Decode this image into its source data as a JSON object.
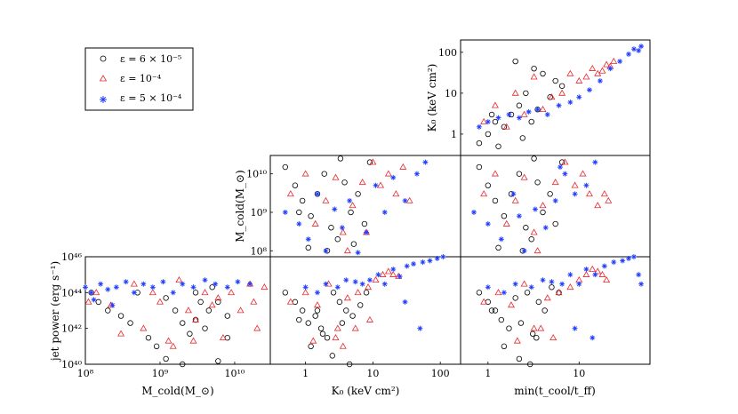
{
  "legend": {
    "entries": [
      {
        "label": "ε = 6 × 10⁻⁵",
        "marker": "circle",
        "color": "#000000"
      },
      {
        "label": "ε = 10⁻⁴",
        "marker": "triangle",
        "color": "#e8262b"
      },
      {
        "label": "ε = 5 × 10⁻⁴",
        "marker": "star",
        "color": "#1e3cff"
      }
    ]
  },
  "chart_data": [
    {
      "type": "scatter",
      "panel": "row3-col1",
      "xlabel": "M_cold(M_⊙)",
      "ylabel": "jet power (erg s⁻¹)",
      "xscale": "log",
      "yscale": "log",
      "xlim": [
        100000000.0,
        30000000000.0
      ],
      "ylim": [
        1e+40,
        1e+46
      ],
      "xticks": [
        {
          "v": 100000000.0,
          "label": "10⁸"
        },
        {
          "v": 1000000000.0,
          "label": "10⁹"
        },
        {
          "v": 10000000000.0,
          "label": "10¹⁰"
        }
      ],
      "yticks": [
        {
          "v": 1e+40,
          "label": "10⁴⁰"
        },
        {
          "v": 1e+42,
          "label": "10⁴²"
        },
        {
          "v": 1e+44,
          "label": "10⁴⁴"
        },
        {
          "v": 1e+46,
          "label": "10⁴⁶"
        }
      ],
      "series": [
        {
          "name": "ε = 6 × 10⁻⁵",
          "x": [
            120000000.0,
            150000000.0,
            200000000.0,
            300000000.0,
            400000000.0,
            500000000.0,
            700000000.0,
            900000000.0,
            1200000000.0,
            1600000000.0,
            2000000000.0,
            2500000000.0,
            3000000000.0,
            3500000000.0,
            4000000000.0,
            5000000000.0,
            6000000000.0,
            8000000000.0,
            1200000000.0,
            2000000000.0,
            3000000000.0,
            4500000000.0,
            6000000000.0,
            8000000000.0
          ],
          "y": [
            1e+44,
            3e+43,
            1e+43,
            5e+42,
            2e+42,
            1e+44,
            3e+41,
            1e+41,
            5e+43,
            1e+43,
            2e+42,
            5e+41,
            1e+44,
            3e+43,
            1e+42,
            2e+44,
            3e+43,
            5e+42,
            2e+40,
            1e+40,
            3e+42,
            1e+43,
            1.5e+40,
            3e+41
          ]
        },
        {
          "name": "ε = 10⁻⁴",
          "x": [
            110000000.0,
            140000000.0,
            220000000.0,
            300000000.0,
            450000000.0,
            600000000.0,
            800000000.0,
            1000000000.0,
            1300000000.0,
            1800000000.0,
            2400000000.0,
            3000000000.0,
            4000000000.0,
            5000000000.0,
            7000000000.0,
            9000000000.0,
            12000000000.0,
            16000000000.0,
            20000000000.0,
            25000000000.0,
            1500000000.0,
            2800000000.0,
            6000000000.0,
            18000000000.0
          ],
          "y": [
            3e+43,
            1e+44,
            2e+43,
            5e+41,
            3e+44,
            1e+42,
            1e+44,
            3e+43,
            2e+41,
            5e+44,
            1e+43,
            3e+42,
            1e+44,
            2e+43,
            3e+41,
            1e+44,
            1e+43,
            3e+44,
            1e+42,
            2e+44,
            1e+41,
            2e+41,
            5e+43,
            3e+43
          ]
        },
        {
          "name": "ε = 5 × 10⁻⁴",
          "x": [
            100000000.0,
            120000000.0,
            160000000.0,
            200000000.0,
            260000000.0,
            350000000.0,
            450000000.0,
            600000000.0,
            800000000.0,
            1100000000.0,
            1500000000.0,
            2000000000.0,
            2800000000.0,
            4000000000.0,
            5500000000.0,
            8000000000.0,
            11000000000.0,
            16000000000.0,
            130000000.0,
            230000000.0
          ],
          "y": [
            2e+44,
            1e+44,
            3e+44,
            1.5e+44,
            2e+44,
            4e+44,
            1e+44,
            3e+44,
            2e+44,
            4e+44,
            1e+44,
            3e+44,
            2e+44,
            5e+44,
            3e+44,
            2e+44,
            4e+44,
            3e+44,
            4e+43,
            2e+43
          ]
        }
      ]
    },
    {
      "type": "scatter",
      "panel": "row3-col2",
      "xlabel": "K₀ (keV cm²)",
      "xscale": "log",
      "yscale": "log",
      "xlim": [
        0.3,
        200
      ],
      "ylim": [
        1e+40,
        1e+46
      ],
      "xticks": [
        {
          "v": 1,
          "label": "1"
        },
        {
          "v": 10,
          "label": "10"
        },
        {
          "v": 100,
          "label": "100"
        }
      ],
      "series": [
        {
          "name": "ε = 6 × 10⁻⁵",
          "x": [
            0.5,
            0.7,
            0.9,
            1.1,
            1.4,
            1.7,
            2.1,
            2.6,
            3.2,
            4,
            5,
            6.5,
            8,
            1.2,
            1.8,
            2.5,
            3.5,
            4.5,
            0.8,
            1.5
          ],
          "y": [
            1e+44,
            3e+43,
            1e+43,
            2e+42,
            5e+42,
            1e+42,
            3e+41,
            1e+44,
            3e+43,
            1e+43,
            5e+42,
            2e+43,
            1e+44,
            1e+41,
            5e+41,
            3e+40,
            2e+42,
            1e+40,
            3e+42,
            1e+43
          ]
        },
        {
          "name": "ε = 10⁻⁴",
          "x": [
            0.6,
            1,
            1.5,
            2.2,
            3,
            4.2,
            6,
            8.5,
            11,
            14,
            17,
            20,
            24,
            2.8,
            5.5,
            9,
            1.3,
            3.6
          ],
          "y": [
            3e+43,
            1e+44,
            2e+43,
            3e+44,
            1e+42,
            5e+43,
            1e+44,
            2e+44,
            5e+44,
            1e+45,
            1.5e+45,
            1e+45,
            8e+44,
            3e+41,
            1e+42,
            3e+42,
            2e+41,
            1e+41
          ]
        },
        {
          "name": "ε = 5 × 10⁻⁴",
          "x": [
            1,
            1.5,
            2,
            3,
            4,
            5.5,
            7,
            9,
            12,
            15,
            20,
            25,
            32,
            40,
            55,
            70,
            90,
            110,
            140,
            50,
            30
          ],
          "y": [
            2e+44,
            1e+44,
            3e+44,
            2e+44,
            5e+44,
            4e+44,
            3e+44,
            5e+44,
            1e+45,
            3e+44,
            2e+45,
            8e+44,
            3e+45,
            4e+45,
            5e+45,
            6e+45,
            8e+45,
            1e+46,
            1.2e+46,
            1e+42,
            3e+43
          ]
        }
      ]
    },
    {
      "type": "scatter",
      "panel": "row3-col3",
      "xlabel": "min(t_cool/t_ff)",
      "xscale": "log",
      "yscale": "log",
      "xlim": [
        0.5,
        60
      ],
      "ylim": [
        1e+40,
        1e+46
      ],
      "xticks": [
        {
          "v": 1,
          "label": "1"
        },
        {
          "v": 10,
          "label": "10"
        }
      ],
      "series": [
        {
          "name": "ε = 6 × 10⁻⁵",
          "x": [
            0.8,
            1,
            1.2,
            1.4,
            1.7,
            2,
            2.3,
            2.7,
            3.1,
            3.6,
            4.2,
            5,
            6,
            1.5,
            2.2,
            2.9,
            3.4,
            1.1
          ],
          "y": [
            1e+44,
            3e+43,
            1e+43,
            3e+42,
            1e+42,
            5e+43,
            2e+42,
            1e+44,
            5e+41,
            3e+43,
            1e+43,
            2e+44,
            1e+44,
            1e+41,
            2e+40,
            1e+40,
            3e+41,
            1e+43
          ]
        },
        {
          "name": "ε = 10⁻⁴",
          "x": [
            0.9,
            1.3,
            1.8,
            2.5,
            3.2,
            4.5,
            6,
            8,
            10,
            12,
            14,
            16,
            18,
            20,
            2.1,
            3.8,
            5.2
          ],
          "y": [
            3e+43,
            1e+44,
            2e+43,
            3e+44,
            1e+42,
            5e+43,
            1e+44,
            2e+44,
            5e+44,
            1e+45,
            2e+45,
            1.5e+45,
            1e+45,
            5e+44,
            2e+41,
            1e+42,
            3e+41
          ]
        },
        {
          "name": "ε = 5 × 10⁻⁴",
          "x": [
            1,
            1.5,
            2,
            3,
            4,
            5,
            6.5,
            8,
            10,
            12,
            15,
            19,
            24,
            30,
            35,
            40,
            45,
            48,
            9,
            14
          ],
          "y": [
            2e+44,
            1e+44,
            3e+44,
            2e+44,
            5e+44,
            4e+44,
            3e+44,
            1e+45,
            3e+44,
            2e+45,
            1e+45,
            3e+45,
            5e+45,
            6e+45,
            8e+45,
            1e+46,
            1e+45,
            3e+44,
            1e+42,
            3e+41
          ]
        }
      ]
    },
    {
      "type": "scatter",
      "panel": "row2-col2",
      "ylabel": "M_cold(M_⊙)",
      "xscale": "log",
      "yscale": "log",
      "xlim": [
        0.3,
        200
      ],
      "ylim": [
        70000000.0,
        30000000000.0
      ],
      "yticks": [
        {
          "v": 100000000.0,
          "label": "10⁸"
        },
        {
          "v": 1000000000.0,
          "label": "10⁹"
        },
        {
          "v": 10000000000.0,
          "label": "10¹⁰"
        }
      ],
      "series": [
        {
          "name": "ε = 6 × 10⁻⁵",
          "x": [
            0.5,
            0.7,
            0.9,
            1.2,
            1.5,
            1.9,
            2.4,
            3,
            3.8,
            4.7,
            6,
            7.5,
            9,
            1.1,
            2.1,
            3.3,
            0.8,
            5.2
          ],
          "y": [
            15000000000.0,
            5000000000.0,
            2000000000.0,
            800000000.0,
            3000000000.0,
            10000000000.0,
            400000000.0,
            200000000.0,
            6000000000.0,
            1000000000.0,
            3000000000.0,
            500000000.0,
            20000000000.0,
            120000000.0,
            100000000.0,
            25000000000.0,
            1000000000.0,
            150000000.0
          ]
        },
        {
          "name": "ε = 10⁻⁴",
          "x": [
            0.6,
            1,
            1.4,
            2,
            2.8,
            3.6,
            5,
            7,
            10,
            13,
            17,
            22,
            28,
            35,
            8,
            4.2
          ],
          "y": [
            3000000000.0,
            10000000000.0,
            500000000.0,
            2000000000.0,
            8000000000.0,
            300000000.0,
            1500000000.0,
            6000000000.0,
            20000000000.0,
            5000000000.0,
            10000000000.0,
            3000000000.0,
            15000000000.0,
            2000000000.0,
            300000000.0,
            100000000.0
          ]
        },
        {
          "name": "ε = 5 × 10⁻⁴",
          "x": [
            0.5,
            0.8,
            1.1,
            1.5,
            2,
            2.7,
            3.5,
            4.5,
            6,
            8,
            11,
            15,
            20,
            30,
            45,
            60
          ],
          "y": [
            1000000000.0,
            500000000.0,
            200000000.0,
            3000000000.0,
            100000000.0,
            1200000000.0,
            400000000.0,
            2000000000.0,
            90000000.0,
            300000000.0,
            5000000000.0,
            1000000000.0,
            8000000000.0,
            2000000000.0,
            10000000000.0,
            20000000000.0
          ]
        }
      ]
    },
    {
      "type": "scatter",
      "panel": "row2-col3",
      "xscale": "log",
      "yscale": "log",
      "xlim": [
        0.5,
        60
      ],
      "ylim": [
        70000000.0,
        30000000000.0
      ],
      "series": [
        {
          "name": "ε = 6 × 10⁻⁵",
          "x": [
            0.8,
            1,
            1.2,
            1.5,
            1.8,
            2.2,
            2.6,
            3,
            3.5,
            4,
            4.8,
            5.5,
            6.5,
            1.3,
            2.4,
            3.2
          ],
          "y": [
            15000000000.0,
            5000000000.0,
            2000000000.0,
            800000000.0,
            3000000000.0,
            10000000000.0,
            400000000.0,
            200000000.0,
            6000000000.0,
            1000000000.0,
            3000000000.0,
            500000000.0,
            20000000000.0,
            120000000.0,
            100000000.0,
            25000000000.0
          ]
        },
        {
          "name": "ε = 10⁻⁴",
          "x": [
            0.9,
            1.2,
            1.6,
            2,
            2.5,
            3.2,
            4,
            5.5,
            7,
            9,
            11,
            13,
            16,
            19,
            21,
            3.5
          ],
          "y": [
            3000000000.0,
            10000000000.0,
            500000000.0,
            2000000000.0,
            8000000000.0,
            300000000.0,
            1500000000.0,
            6000000000.0,
            20000000000.0,
            5000000000.0,
            10000000000.0,
            3000000000.0,
            1500000000.0,
            3000000000.0,
            2000000000.0,
            100000000.0
          ]
        },
        {
          "name": "ε = 5 × 10⁻⁴",
          "x": [
            0.7,
            1,
            1.4,
            1.9,
            2.5,
            3.3,
            4.3,
            5.5,
            7,
            9,
            12,
            15,
            2.2,
            6.2
          ],
          "y": [
            1000000000.0,
            500000000.0,
            200000000.0,
            3000000000.0,
            100000000.0,
            1200000000.0,
            400000000.0,
            2000000000.0,
            10000000000.0,
            3000000000.0,
            5000000000.0,
            20000000000.0,
            800000000.0,
            15000000000.0
          ]
        }
      ]
    },
    {
      "type": "scatter",
      "panel": "row1-col3",
      "ylabel": "K₀ (keV cm²)",
      "xscale": "log",
      "yscale": "log",
      "xlim": [
        0.5,
        60
      ],
      "ylim": [
        0.3,
        200
      ],
      "yticks": [
        {
          "v": 1,
          "label": "1"
        },
        {
          "v": 10,
          "label": "10"
        },
        {
          "v": 100,
          "label": "100"
        }
      ],
      "series": [
        {
          "name": "ε = 6 × 10⁻⁵",
          "x": [
            0.8,
            1,
            1.2,
            1.5,
            1.8,
            2.2,
            2.6,
            3,
            3.5,
            4,
            4.8,
            5.5,
            6.5,
            1.3,
            2.4,
            3.2,
            2,
            1.1
          ],
          "y": [
            0.6,
            1,
            2,
            1.5,
            3,
            5,
            10,
            2,
            4,
            30,
            8,
            20,
            15,
            0.5,
            0.8,
            40,
            60,
            3
          ]
        },
        {
          "name": "ε = 10⁻⁴",
          "x": [
            0.9,
            1.2,
            1.6,
            2,
            2.5,
            3.2,
            4,
            5,
            6.5,
            8,
            10,
            12,
            14,
            16,
            18,
            20,
            22,
            24
          ],
          "y": [
            2,
            5,
            1.5,
            10,
            3,
            25,
            4,
            8,
            10,
            30,
            20,
            25,
            40,
            30,
            35,
            50,
            45,
            60
          ]
        },
        {
          "name": "ε = 5 × 10⁻⁴",
          "x": [
            0.8,
            1,
            1.3,
            1.7,
            2.2,
            2.8,
            3.5,
            4.5,
            6,
            8,
            10,
            13,
            17,
            22,
            28,
            35,
            40,
            45,
            48
          ],
          "y": [
            1.5,
            2,
            2.5,
            3,
            2.5,
            3.5,
            4,
            3,
            5,
            6,
            8,
            12,
            20,
            40,
            60,
            90,
            120,
            110,
            140
          ]
        }
      ]
    }
  ]
}
